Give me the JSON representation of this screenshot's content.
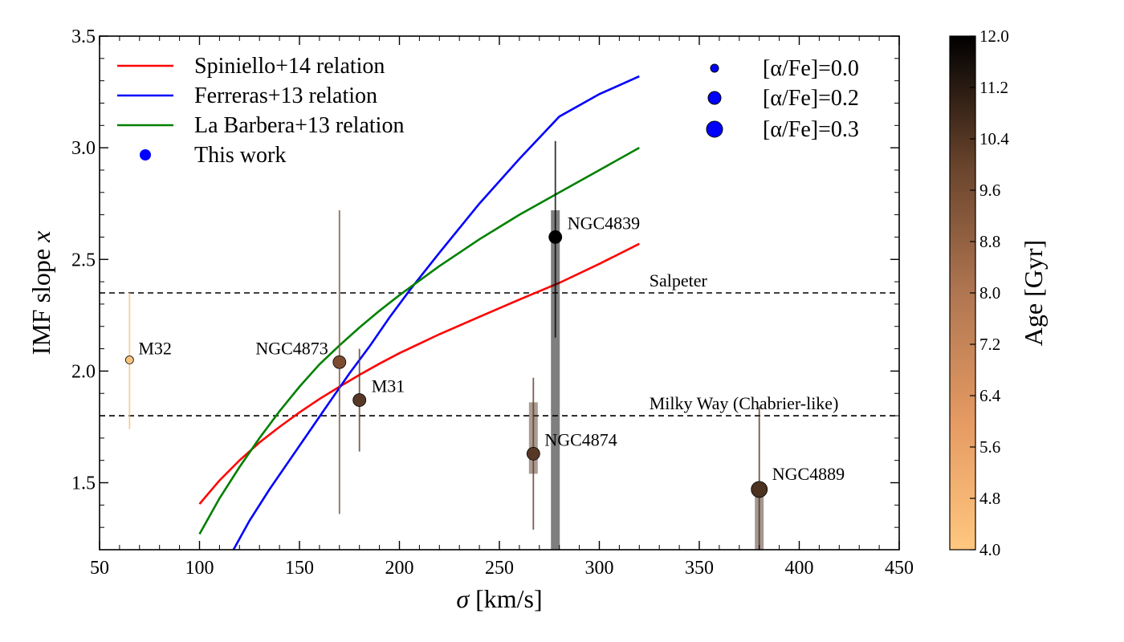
{
  "chart_data": {
    "type": "scatter",
    "xlabel_symbol": "σ",
    "xlabel_unit": " [km/s]",
    "ylabel_text": "IMF slope ",
    "ylabel_var": "x",
    "xlim": [
      50,
      450
    ],
    "ylim": [
      1.2,
      3.5
    ],
    "x_ticks": [
      50,
      100,
      150,
      200,
      250,
      300,
      350,
      400,
      450
    ],
    "y_ticks": [
      1.5,
      2.0,
      2.5,
      3.0,
      3.5
    ],
    "y_tick_labels": [
      "1.5",
      "2.0",
      "2.5",
      "3.0",
      "3.5"
    ],
    "lines": [
      {
        "name": "Spiniello+14 relation",
        "color": "#ff0000",
        "x": [
          100,
          110,
          120,
          130,
          140,
          150,
          160,
          170,
          180,
          190,
          200,
          220,
          240,
          260,
          280,
          300,
          320
        ],
        "y": [
          1.405,
          1.51,
          1.6,
          1.68,
          1.75,
          1.815,
          1.875,
          1.93,
          1.983,
          2.033,
          2.08,
          2.165,
          2.243,
          2.32,
          2.395,
          2.48,
          2.57
        ]
      },
      {
        "name": "Ferreras+13 relation",
        "color": "#0000ff",
        "x": [
          117,
          125,
          135,
          145,
          155,
          165,
          175,
          185,
          195,
          205,
          220,
          240,
          260,
          280,
          300,
          320
        ],
        "y": [
          1.2,
          1.33,
          1.47,
          1.6,
          1.73,
          1.86,
          1.99,
          2.11,
          2.24,
          2.36,
          2.53,
          2.75,
          2.95,
          3.14,
          3.24,
          3.32
        ]
      },
      {
        "name": "La Barbera+13 relation",
        "color": "#008000",
        "x": [
          100,
          110,
          120,
          130,
          140,
          150,
          160,
          170,
          180,
          190,
          200,
          220,
          240,
          260,
          280,
          300,
          320
        ],
        "y": [
          1.27,
          1.43,
          1.57,
          1.7,
          1.82,
          1.93,
          2.03,
          2.115,
          2.195,
          2.27,
          2.34,
          2.47,
          2.59,
          2.7,
          2.8,
          2.9,
          3.0
        ]
      }
    ],
    "this_work_label": "This work",
    "this_work_color": "#0000ff",
    "reference_lines": [
      {
        "label": "Salpeter",
        "y": 2.35
      },
      {
        "label": "Milky Way (Chabrier-like)",
        "y": 1.8
      }
    ],
    "points": [
      {
        "name": "M32",
        "x": 65,
        "y": 2.05,
        "err_lo": 1.74,
        "err_hi": 2.35,
        "age_gyr": 4.0,
        "color": "#f9c27e",
        "size": "small"
      },
      {
        "name": "NGC4873",
        "x": 170,
        "y": 2.04,
        "err_lo": 1.36,
        "err_hi": 2.72,
        "age_gyr": 9.0,
        "color": "#7b4c30",
        "size": "medium"
      },
      {
        "name": "M31",
        "x": 180,
        "y": 1.87,
        "err_lo": 1.64,
        "err_hi": 2.1,
        "age_gyr": 10.2,
        "color": "#573826",
        "size": "medium"
      },
      {
        "name": "NGC4874",
        "x": 267,
        "y": 1.63,
        "err_lo": 1.29,
        "err_hi": 1.97,
        "box_lo": 1.54,
        "box_hi": 1.86,
        "age_gyr": 10.4,
        "color": "#573826",
        "size": "medium"
      },
      {
        "name": "NGC4839",
        "x": 278,
        "y": 2.6,
        "err_lo": 2.15,
        "err_hi": 3.03,
        "box_lo": 1.2,
        "box_hi": 2.72,
        "age_gyr": 12.0,
        "color": "#000000",
        "size": "medium"
      },
      {
        "name": "NGC4889",
        "x": 380,
        "y": 1.47,
        "err_lo": 1.2,
        "err_hi": 1.84,
        "box_lo": 1.2,
        "box_hi": 1.47,
        "age_gyr": 10.6,
        "color": "#4b3221",
        "size": "large"
      }
    ],
    "size_legend": [
      {
        "label": "[α/Fe]=0.0",
        "size": "small"
      },
      {
        "label": "[α/Fe]=0.2",
        "size": "medium"
      },
      {
        "label": "[α/Fe]=0.3",
        "size": "large"
      }
    ],
    "colorbar": {
      "label": "Age [Gyr]",
      "range": [
        4.0,
        12.0
      ],
      "ticks": [
        "4.0",
        "4.8",
        "5.6",
        "6.4",
        "7.2",
        "8.0",
        "8.8",
        "9.6",
        "10.4",
        "11.2",
        "12.0"
      ],
      "color_low": "#ffc77f",
      "color_high": "#000000"
    }
  }
}
